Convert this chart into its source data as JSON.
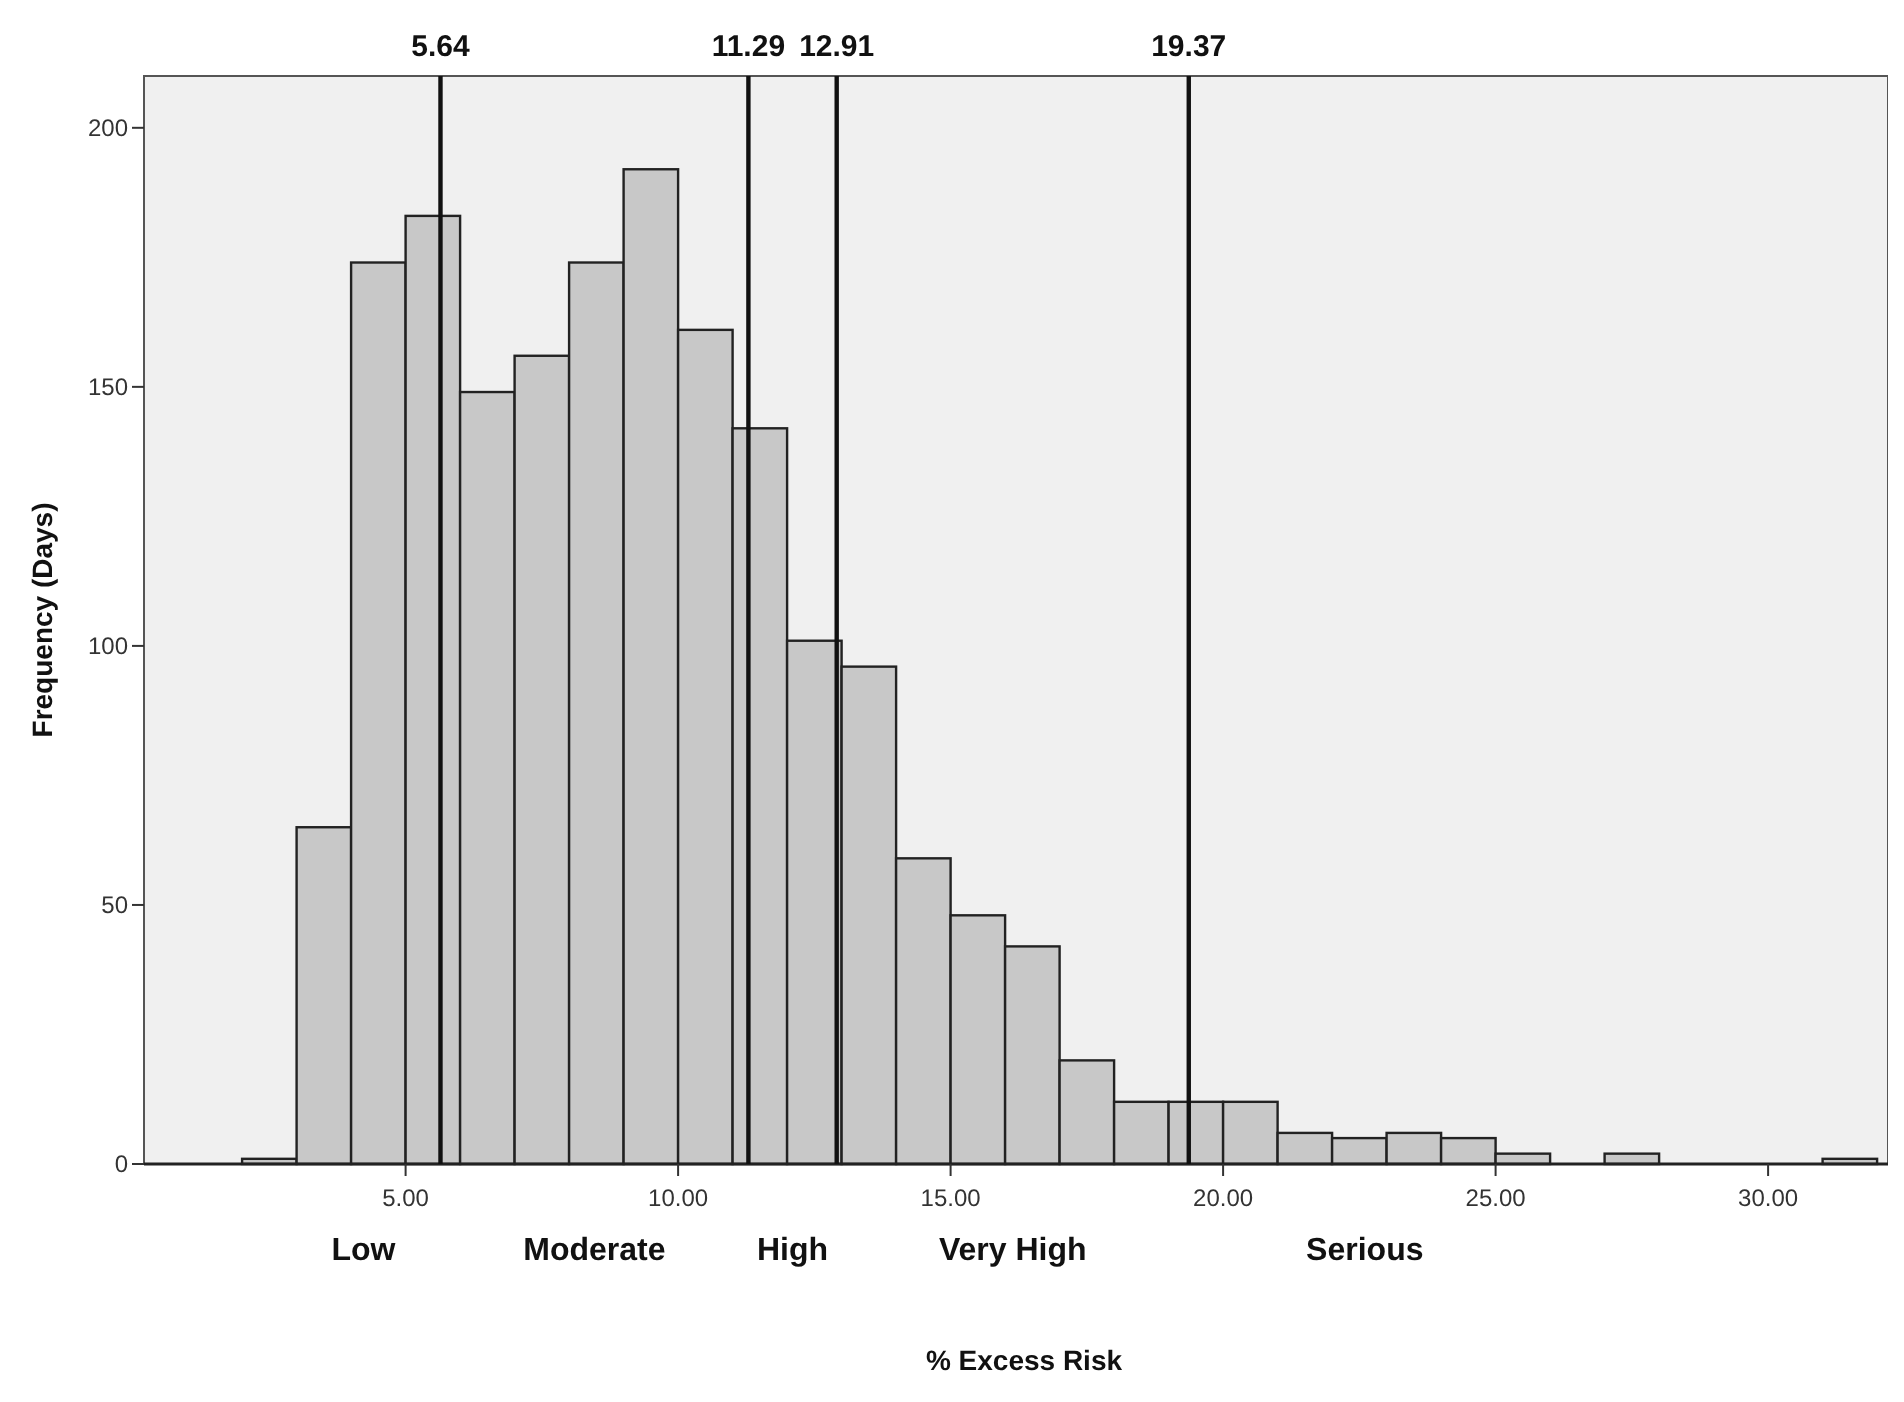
{
  "chart_data": {
    "type": "histogram",
    "xlabel": "% Excess Risk",
    "ylabel": "Frequency (Days)",
    "bins": [
      2,
      3,
      4,
      5,
      6,
      7,
      8,
      9,
      10,
      11,
      12,
      13,
      14,
      15,
      16,
      17,
      18,
      19,
      20,
      21,
      22,
      23,
      24,
      25,
      26,
      27,
      28,
      29,
      30,
      31,
      32
    ],
    "values": [
      1,
      65,
      174,
      183,
      149,
      156,
      174,
      192,
      161,
      142,
      101,
      96,
      59,
      48,
      42,
      20,
      12,
      12,
      12,
      6,
      5,
      6,
      5,
      2,
      0,
      2,
      0,
      0,
      0,
      1
    ],
    "color": "#c8c8c8",
    "xlim": [
      0.2,
      32.2
    ],
    "xticks": [
      {
        "value": 5,
        "label": "5.00"
      },
      {
        "value": 10,
        "label": "10.00"
      },
      {
        "value": 15,
        "label": "15.00"
      },
      {
        "value": 20,
        "label": "20.00"
      },
      {
        "value": 25,
        "label": "25.00"
      },
      {
        "value": 30,
        "label": "30.00"
      }
    ],
    "ylim": [
      0,
      210
    ],
    "yticks": [
      0,
      50,
      100,
      150,
      200
    ],
    "ref_lines": [
      {
        "axis": "x",
        "value": 5.64,
        "label": "5.64"
      },
      {
        "axis": "x",
        "value": 11.29,
        "label": "11.29"
      },
      {
        "axis": "x",
        "value": 12.91,
        "label": "12.91"
      },
      {
        "axis": "x",
        "value": 19.37,
        "label": "19.37"
      }
    ],
    "annotations": [
      "Low",
      "Moderate",
      "High",
      "Very High",
      "Serious"
    ],
    "grid": false
  }
}
